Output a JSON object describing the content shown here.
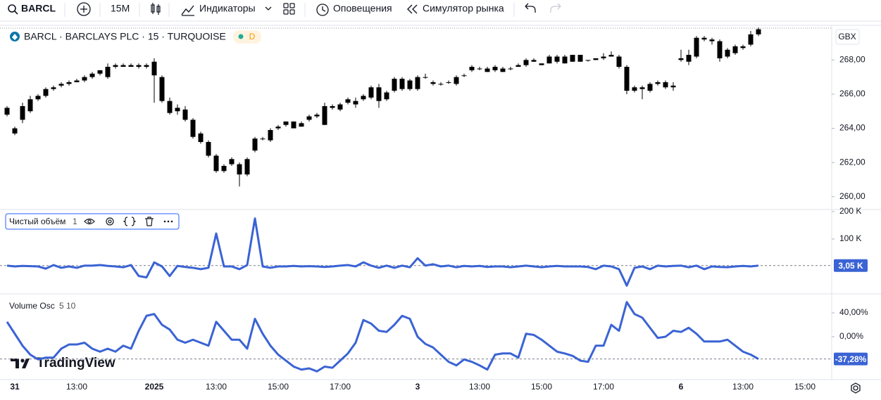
{
  "toolbar": {
    "symbol": "BARCL",
    "interval": "15M",
    "indicators": "Индикаторы",
    "alerts": "Оповещения",
    "replay": "Симулятор рынка"
  },
  "logo": "TradingView",
  "chart_data": [
    {
      "type": "candlestick",
      "title": "BARCL · BARCLAYS PLC · 15 · TURQUOISE",
      "badge": "D",
      "currency": "GBX",
      "categories": [
        null,
        "31",
        null,
        null,
        null,
        null,
        null,
        null,
        null,
        "13:00",
        null,
        null,
        null,
        null,
        null,
        null,
        null,
        null,
        null,
        "2025",
        null,
        null,
        null,
        null,
        null,
        null,
        null,
        "13:00",
        null,
        null,
        null,
        null,
        null,
        null,
        null,
        "15:00",
        null,
        null,
        null,
        null,
        null,
        null,
        null,
        "17:00",
        null,
        null,
        null,
        null,
        null,
        null,
        null,
        null,
        null,
        "3",
        null,
        null,
        null,
        null,
        null,
        null,
        null,
        "13:00",
        null,
        null,
        null,
        null,
        null,
        null,
        null,
        "15:00",
        null,
        null,
        null,
        null,
        null,
        null,
        null,
        "17:00",
        null,
        null,
        null,
        null,
        null,
        null,
        null,
        null,
        null,
        "6",
        null,
        null,
        null,
        null,
        null,
        null,
        null,
        "13:00",
        null,
        null,
        null,
        null,
        null,
        null,
        null,
        "15:00",
        null,
        null
      ],
      "open": [
        265.2,
        264.0,
        264.5,
        265.0,
        265.7,
        265.9,
        266.3,
        266.5,
        266.6,
        266.7,
        266.8,
        267.0,
        267.2,
        267.0,
        267.6,
        267.7,
        267.6,
        267.6,
        267.7,
        267.9,
        267.0,
        265.6,
        265.2,
        265.1,
        264.5,
        263.7,
        263.2,
        262.4,
        261.5,
        261.9,
        261.9,
        261.3,
        262.7,
        263.4,
        263.3,
        264.0,
        264.2,
        264.0,
        264.1,
        264.5,
        264.7,
        265.3,
        265.2,
        265.1,
        265.5,
        265.4,
        265.7,
        265.8,
        266.4,
        265.7,
        266.2,
        266.9,
        266.3,
        266.3,
        267.0,
        266.6,
        266.6,
        266.7,
        266.6,
        267.1,
        267.4,
        267.5,
        267.3,
        267.6,
        267.3,
        267.5,
        267.6,
        267.7,
        267.9,
        267.8,
        267.8,
        268.2,
        267.8,
        267.9,
        268.3,
        268.0,
        268.0,
        268.1,
        268.3,
        268.2,
        267.6,
        266.2,
        266.3,
        266.2,
        266.6,
        266.7,
        266.5,
        268.0,
        267.9,
        268.2,
        269.3,
        269.2,
        269.1,
        268.2,
        268.4,
        268.7,
        268.9,
        269.5,
        null,
        null,
        null,
        null,
        null,
        null,
        null,
        null
      ],
      "high": [
        265.3,
        264.1,
        265.5,
        265.9,
        266.0,
        266.4,
        266.5,
        266.7,
        266.8,
        266.9,
        267.1,
        267.3,
        267.4,
        267.8,
        267.8,
        267.8,
        267.8,
        267.8,
        267.8,
        268.1,
        267.1,
        265.8,
        265.4,
        265.3,
        264.6,
        263.8,
        263.3,
        262.5,
        261.9,
        262.3,
        262.0,
        262.3,
        263.5,
        263.5,
        264.0,
        264.2,
        264.4,
        264.4,
        264.4,
        264.8,
        264.9,
        265.5,
        265.4,
        265.5,
        265.8,
        265.8,
        266.0,
        266.5,
        266.6,
        266.2,
        267.0,
        267.0,
        266.9,
        267.1,
        267.2,
        266.8,
        266.7,
        266.8,
        267.1,
        267.2,
        267.7,
        267.6,
        267.6,
        267.7,
        267.6,
        267.6,
        267.8,
        268.1,
        268.1,
        267.8,
        268.3,
        268.3,
        268.3,
        268.3,
        268.3,
        268.0,
        268.1,
        268.4,
        268.5,
        268.3,
        267.7,
        266.5,
        266.5,
        266.7,
        266.8,
        266.8,
        266.7,
        268.6,
        268.6,
        269.4,
        269.4,
        269.3,
        269.2,
        268.7,
        268.9,
        268.9,
        269.7,
        269.9,
        null,
        null,
        null,
        null,
        null,
        null,
        null,
        null
      ],
      "low": [
        264.7,
        263.6,
        264.3,
        264.9,
        265.6,
        265.8,
        266.2,
        266.4,
        266.5,
        266.7,
        266.7,
        266.9,
        267.1,
        266.9,
        267.5,
        267.6,
        267.6,
        267.5,
        267.5,
        265.5,
        265.5,
        264.8,
        264.8,
        264.4,
        263.4,
        263.1,
        262.3,
        261.4,
        261.4,
        261.8,
        260.6,
        261.2,
        262.6,
        263.3,
        263.2,
        263.9,
        264.1,
        264.0,
        264.1,
        264.4,
        264.6,
        264.2,
        265.1,
        265.0,
        265.4,
        265.2,
        265.6,
        265.7,
        265.2,
        265.6,
        266.1,
        266.2,
        266.2,
        266.2,
        266.9,
        266.5,
        266.5,
        266.6,
        266.5,
        267.0,
        267.3,
        267.4,
        267.3,
        267.3,
        267.3,
        267.4,
        267.6,
        267.6,
        267.9,
        267.7,
        267.8,
        267.8,
        267.8,
        267.9,
        267.9,
        267.9,
        268.0,
        268.0,
        268.2,
        267.5,
        266.0,
        266.1,
        265.7,
        266.1,
        266.5,
        266.3,
        266.2,
        267.9,
        267.7,
        268.1,
        269.1,
        268.9,
        267.9,
        268.1,
        268.3,
        268.6,
        268.8,
        269.4,
        null,
        null,
        null,
        null,
        null,
        null,
        null,
        null
      ],
      "close": [
        264.8,
        263.7,
        265.3,
        265.7,
        265.9,
        266.3,
        266.4,
        266.6,
        266.7,
        266.8,
        267.0,
        267.2,
        267.4,
        267.6,
        267.7,
        267.6,
        267.7,
        267.7,
        267.6,
        267.1,
        265.6,
        264.9,
        265.0,
        264.5,
        263.5,
        263.2,
        262.4,
        261.5,
        261.8,
        262.2,
        261.3,
        262.2,
        263.4,
        263.4,
        263.9,
        264.1,
        264.4,
        264.4,
        264.3,
        264.7,
        264.8,
        264.2,
        265.3,
        265.4,
        265.7,
        265.6,
        265.9,
        266.4,
        265.6,
        266.1,
        266.9,
        266.3,
        266.8,
        267.0,
        267.0,
        266.7,
        266.6,
        266.7,
        267.0,
        267.1,
        267.6,
        267.5,
        267.5,
        267.4,
        267.5,
        267.5,
        267.7,
        268.0,
        268.0,
        267.7,
        268.2,
        267.9,
        268.2,
        268.3,
        267.9,
        268.0,
        268.1,
        268.2,
        268.2,
        267.6,
        266.2,
        266.4,
        266.4,
        266.6,
        266.7,
        266.4,
        266.4,
        268.1,
        268.3,
        269.3,
        269.2,
        269.1,
        268.1,
        268.6,
        268.8,
        268.8,
        269.5,
        269.8,
        null,
        null,
        null,
        null,
        null,
        null,
        null,
        null
      ],
      "up_color": "#000000",
      "down_color": "#000000",
      "ylim": [
        259.25,
        270.03
      ],
      "yticks": [
        {
          "value": 260,
          "label": "260,00"
        },
        {
          "value": 262,
          "label": "262,00"
        },
        {
          "value": 264,
          "label": "264,00"
        },
        {
          "value": 266,
          "label": "266,00"
        },
        {
          "value": 268,
          "label": "268,00"
        }
      ]
    },
    {
      "type": "line",
      "title": "Чистый объём",
      "params": "1",
      "color": "#3a63d4",
      "values": [
        3000,
        0,
        2000,
        1000,
        0,
        -8000,
        5000,
        -5000,
        0,
        -5000,
        3000,
        3000,
        5000,
        2000,
        0,
        -3000,
        5000,
        -35000,
        -40000,
        15000,
        0,
        -35000,
        2000,
        -2000,
        -5000,
        -10000,
        -5000,
        120000,
        0,
        0,
        -10000,
        5000,
        175000,
        0,
        -5000,
        0,
        0,
        2000,
        0,
        1000,
        0,
        -2000,
        0,
        3000,
        5000,
        0,
        15000,
        3000,
        -5000,
        3000,
        -5000,
        3000,
        -3000,
        30000,
        3000,
        8000,
        0,
        3000,
        -3000,
        2000,
        0,
        2000,
        -2000,
        0,
        0,
        -3000,
        0,
        3000,
        0,
        -3000,
        0,
        2000,
        0,
        0,
        0,
        -2000,
        -10000,
        3000,
        0,
        -10000,
        -70000,
        -5000,
        0,
        -10000,
        3000,
        0,
        2000,
        3000,
        -3000,
        3000,
        -10000,
        0,
        -2000,
        -3000,
        0,
        2000,
        0,
        3050,
        null,
        null,
        null,
        null,
        null,
        null,
        null,
        null
      ],
      "last_value_label": "3,05 K",
      "ylim": [
        -100000,
        207700
      ],
      "yticks": [
        {
          "value": 100000,
          "label": "100 K"
        },
        {
          "value": 200000,
          "label": "200 K"
        }
      ]
    },
    {
      "type": "line",
      "title": "Volume Osc",
      "params": "5 10",
      "color": "#3a63d4",
      "values": [
        25,
        5,
        -15,
        -30,
        -38,
        -35,
        -35,
        -20,
        -13,
        -13,
        -10,
        -20,
        -25,
        -20,
        -25,
        -15,
        -20,
        10,
        35,
        38,
        20,
        12,
        -5,
        -10,
        -5,
        -10,
        -15,
        25,
        10,
        -5,
        -5,
        -20,
        30,
        5,
        -15,
        -30,
        -40,
        -50,
        -55,
        -53,
        -58,
        -50,
        -52,
        -40,
        -28,
        -10,
        28,
        22,
        10,
        8,
        20,
        35,
        30,
        0,
        -12,
        -18,
        -30,
        -42,
        -48,
        -38,
        -42,
        -48,
        -55,
        -30,
        -28,
        -28,
        -35,
        5,
        3,
        -5,
        -15,
        -25,
        -28,
        -32,
        -40,
        -42,
        -15,
        -15,
        20,
        10,
        58,
        38,
        32,
        15,
        -2,
        0,
        10,
        8,
        15,
        5,
        -8,
        -8,
        -8,
        -5,
        -15,
        -25,
        -30,
        -37.28,
        null,
        null,
        null,
        null,
        null,
        null,
        null,
        null
      ],
      "last_value_label": "-37,28%",
      "ylim": [
        -71.8,
        71.8
      ],
      "yticks": [
        {
          "value": 40,
          "label": "40,00%"
        },
        {
          "value": 0,
          "label": "0,00%"
        }
      ]
    }
  ]
}
